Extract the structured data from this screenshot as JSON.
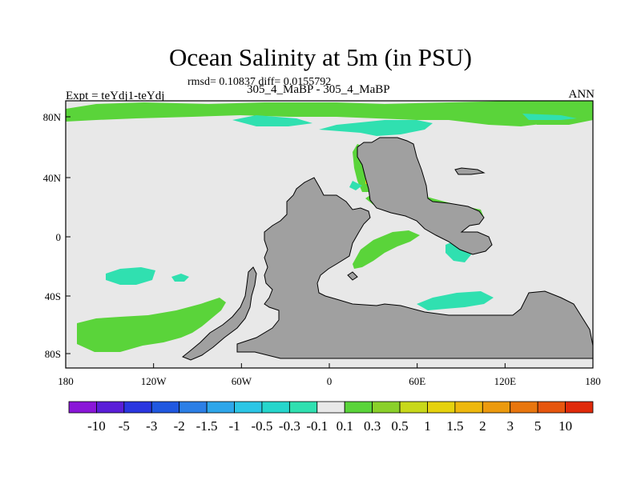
{
  "title": "Ocean Salinity at 5m (in PSU)",
  "stats": "rmsd= 0.10837 diff= 0.0155792",
  "experiment": "Expt = teYdj1-teYdj",
  "case_label": "305_4_MaBP - 305_4_MaBP",
  "season": "ANN",
  "lat_ticks": [
    "80N",
    "40N",
    "0",
    "40S",
    "80S"
  ],
  "lon_ticks": [
    "180",
    "120W",
    "60W",
    "0",
    "60E",
    "120E",
    "180"
  ],
  "colorbar": {
    "labels": [
      "-10",
      "-5",
      "-3",
      "-2",
      "-1.5",
      "-1",
      "-0.5",
      "-0.3",
      "-0.1",
      "0.1",
      "0.3",
      "0.5",
      "1",
      "1.5",
      "2",
      "3",
      "5",
      "10"
    ],
    "colors": [
      "#8a16d8",
      "#5a1ed8",
      "#2a36e0",
      "#2058e0",
      "#2c7fe6",
      "#2ea6ea",
      "#2cc6e6",
      "#26d6cc",
      "#30e0b0",
      "#e8e8e8",
      "#5ad43a",
      "#8ad02a",
      "#c8d81a",
      "#e6d20e",
      "#eeb80e",
      "#ec9a0e",
      "#e8760e",
      "#e6560e",
      "#e02a0a"
    ]
  },
  "map_colors": {
    "land": "#a0a0a0",
    "neutral_ocean": "#e8e8e8",
    "frame": "#000000"
  }
}
